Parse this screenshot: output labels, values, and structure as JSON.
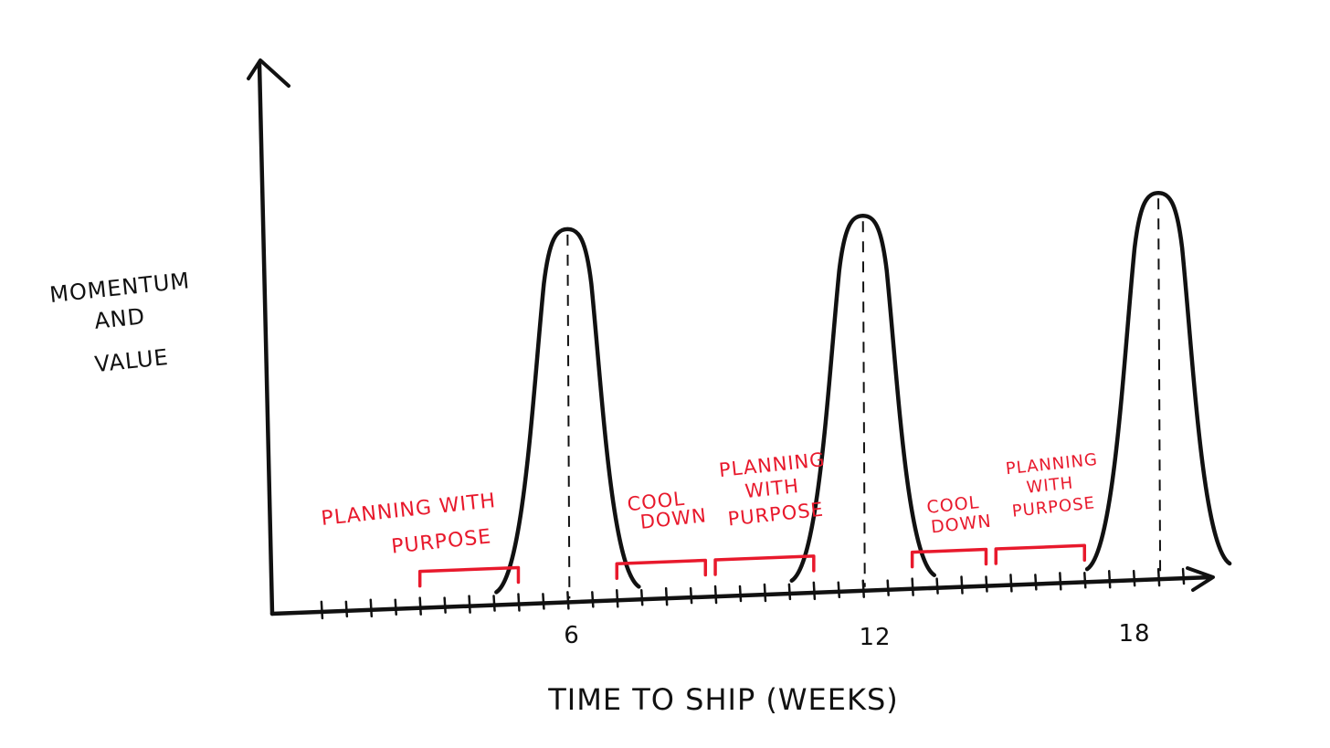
{
  "chart_data": {
    "type": "line",
    "title": "",
    "xlabel": "TIME TO SHIP (WEEKS)",
    "ylabel": [
      "MOMENTUM",
      "AND",
      "VALUE"
    ],
    "x_ticks": [
      6,
      12,
      18
    ],
    "x_range": [
      0,
      19
    ],
    "y_range": [
      0,
      1
    ],
    "grid": false,
    "legend": "none",
    "colors": {
      "curve": "#111111",
      "annotation": "#e8192c"
    },
    "series": [
      {
        "peaks": [
          {
            "x": 6,
            "y": 0.72
          },
          {
            "x": 12,
            "y": 0.74
          },
          {
            "x": 18,
            "y": 0.78
          }
        ]
      }
    ],
    "annotations": [
      {
        "lines": [
          "PLANNING WITH",
          "PURPOSE"
        ],
        "x_start": 3,
        "x_end": 5
      },
      {
        "lines": [
          "COOL",
          "DOWN"
        ],
        "x_start": 7,
        "x_end": 8.8
      },
      {
        "lines": [
          "PLANNING",
          "WITH",
          "PURPOSE"
        ],
        "x_start": 9,
        "x_end": 11
      },
      {
        "lines": [
          "COOL",
          "DOWN"
        ],
        "x_start": 13,
        "x_end": 14.5
      },
      {
        "lines": [
          "PLANNING",
          "WITH",
          "PURPOSE"
        ],
        "x_start": 14.7,
        "x_end": 16.5
      }
    ]
  }
}
